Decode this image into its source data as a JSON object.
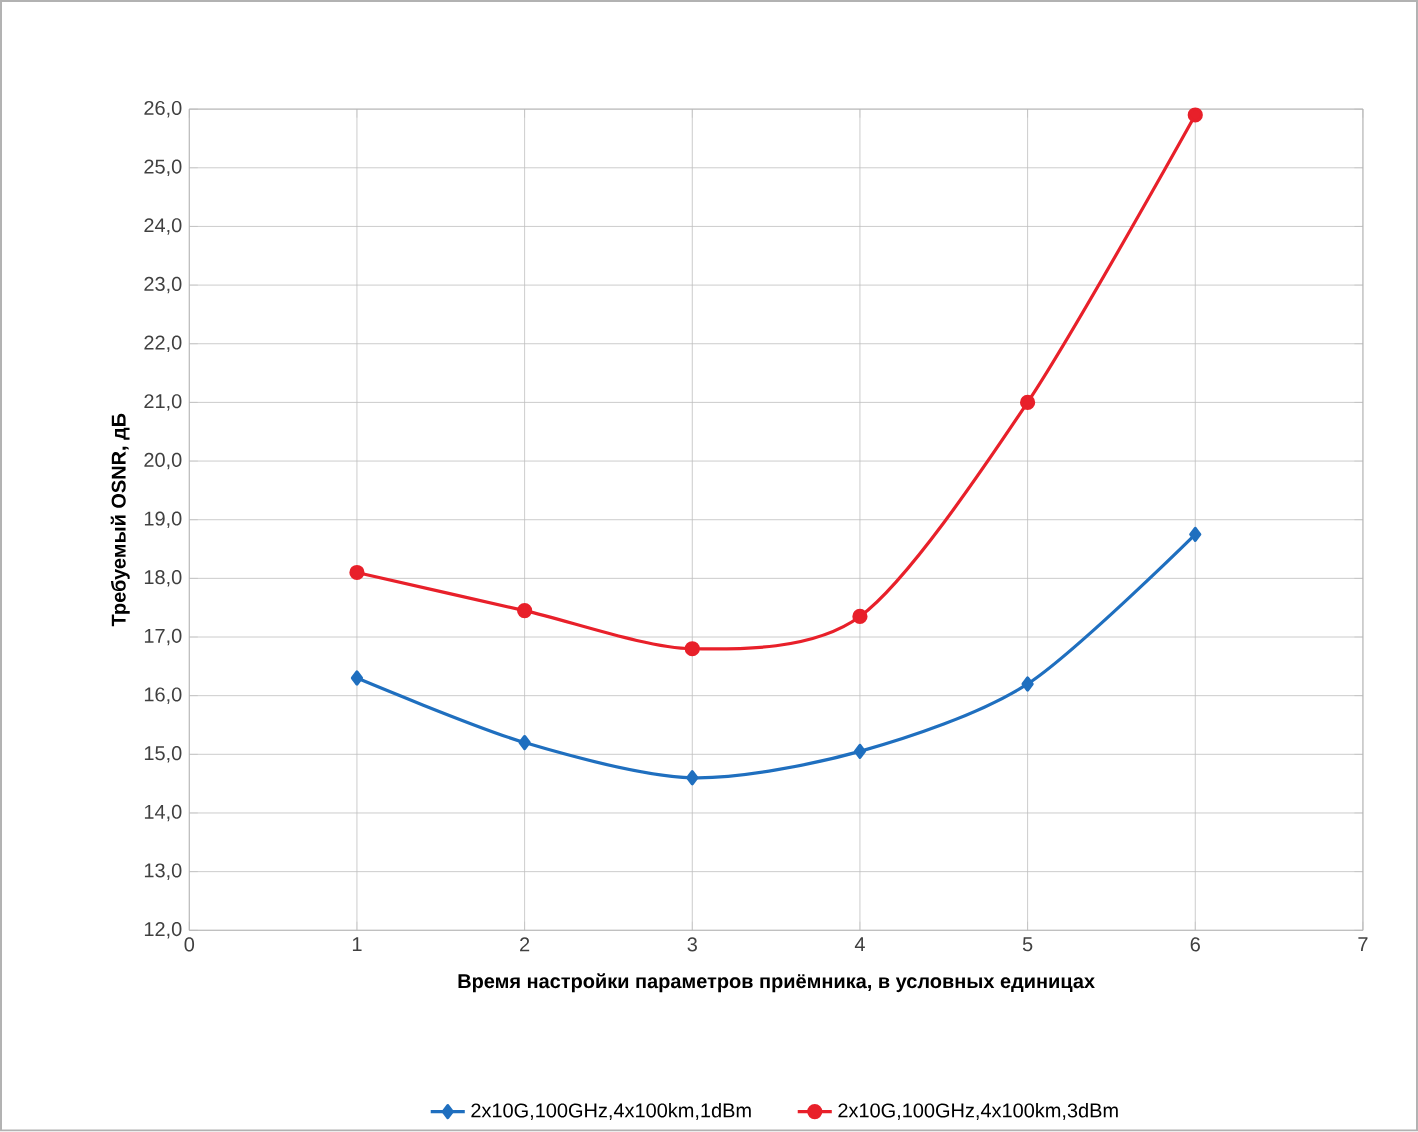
{
  "chart_data": {
    "type": "line",
    "xlabel": "Время настройки параметров приёмника, в условных единицах",
    "ylabel": "Требуемый OSNR, дБ",
    "x": [
      1,
      2,
      3,
      4,
      5,
      6
    ],
    "series": [
      {
        "name": "2x10G,100GHz,4x100km,1dBm",
        "color": "#1f6fbf",
        "marker": "diamond",
        "values": [
          16.3,
          15.2,
          14.6,
          15.05,
          16.2,
          18.75
        ]
      },
      {
        "name": "2x10G,100GHz,4x100km,3dBm",
        "color": "#e8202a",
        "marker": "circle",
        "values": [
          18.1,
          17.45,
          16.8,
          17.35,
          21.0,
          25.9
        ]
      }
    ],
    "xlim": [
      0,
      7
    ],
    "xticks": [
      0,
      1,
      2,
      3,
      4,
      5,
      6,
      7
    ],
    "ylim": [
      12,
      26
    ],
    "yticks": [
      {
        "value": 12,
        "label": "12,0"
      },
      {
        "value": 13,
        "label": "13,0"
      },
      {
        "value": 14,
        "label": "14,0"
      },
      {
        "value": 15,
        "label": "15,0"
      },
      {
        "value": 16,
        "label": "16,0"
      },
      {
        "value": 17,
        "label": "17,0"
      },
      {
        "value": 18,
        "label": "18,0"
      },
      {
        "value": 19,
        "label": "19,0"
      },
      {
        "value": 20,
        "label": "20,0"
      },
      {
        "value": 21,
        "label": "21,0"
      },
      {
        "value": 22,
        "label": "22,0"
      },
      {
        "value": 23,
        "label": "23,0"
      },
      {
        "value": 24,
        "label": "24,0"
      },
      {
        "value": 25,
        "label": "25,0"
      },
      {
        "value": 26,
        "label": "26,0"
      }
    ],
    "grid": true,
    "legend": "bottom",
    "line_style": "solid"
  }
}
